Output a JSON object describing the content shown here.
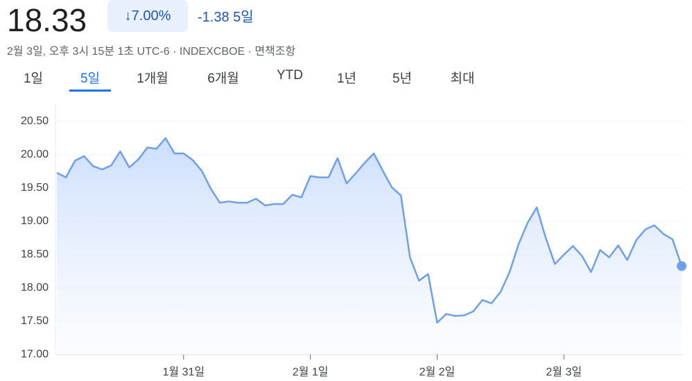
{
  "header": {
    "price": "18.33",
    "change_percent": "7.00%",
    "change": "-1.38",
    "period": "5일",
    "subtitle": "2월 3일, 오후 3시 15분 1초 UTC-6 · INDEXCBOE · 면책조항"
  },
  "tabs": {
    "items": [
      "1일",
      "5일",
      "1개월",
      "6개월",
      "YTD",
      "1년",
      "5년",
      "최대"
    ],
    "active": 1
  },
  "chart_data": {
    "type": "line",
    "color": "#6b9ff0",
    "categories": [
      null,
      null,
      null,
      null,
      null,
      null,
      null,
      null,
      null,
      null,
      null,
      null,
      null,
      null,
      "1월 31일",
      null,
      null,
      null,
      null,
      null,
      null,
      null,
      null,
      null,
      null,
      null,
      null,
      null,
      "2월 1일",
      null,
      null,
      null,
      null,
      null,
      null,
      null,
      null,
      null,
      null,
      null,
      null,
      null,
      "2월 2일",
      null,
      null,
      null,
      null,
      null,
      null,
      null,
      null,
      null,
      null,
      null,
      null,
      null,
      "2월 3일",
      null,
      null,
      null,
      null,
      null,
      null,
      null,
      null,
      null,
      null,
      null,
      null,
      null
    ],
    "values": [
      19.73,
      19.66,
      19.91,
      19.98,
      19.83,
      19.78,
      19.84,
      20.05,
      19.81,
      19.93,
      20.11,
      20.09,
      20.25,
      20.02,
      20.02,
      19.92,
      19.76,
      19.49,
      19.28,
      19.3,
      19.28,
      19.28,
      19.34,
      19.24,
      19.26,
      19.26,
      19.4,
      19.36,
      19.68,
      19.66,
      19.66,
      19.95,
      19.57,
      19.72,
      19.88,
      20.02,
      19.76,
      19.51,
      19.39,
      18.46,
      18.11,
      18.21,
      17.48,
      17.61,
      17.58,
      17.59,
      17.65,
      17.82,
      17.77,
      17.94,
      18.24,
      18.66,
      18.98,
      19.21,
      18.75,
      18.36,
      18.5,
      18.63,
      18.48,
      18.24,
      18.57,
      18.46,
      18.64,
      18.42,
      18.72,
      18.88,
      18.94,
      18.81,
      18.73,
      18.33
    ],
    "ylim": [
      17,
      20.5
    ],
    "yticks": [
      {
        "value": 17,
        "label": "17.00"
      },
      {
        "value": 17.5,
        "label": "17.50"
      },
      {
        "value": 18,
        "label": "18.00"
      },
      {
        "value": 18.5,
        "label": "18.50"
      },
      {
        "value": 19,
        "label": "19.00"
      },
      {
        "value": 19.5,
        "label": "19.50"
      },
      {
        "value": 20,
        "label": "20.00"
      },
      {
        "value": 20.5,
        "label": "20.50"
      }
    ],
    "grid": true
  }
}
